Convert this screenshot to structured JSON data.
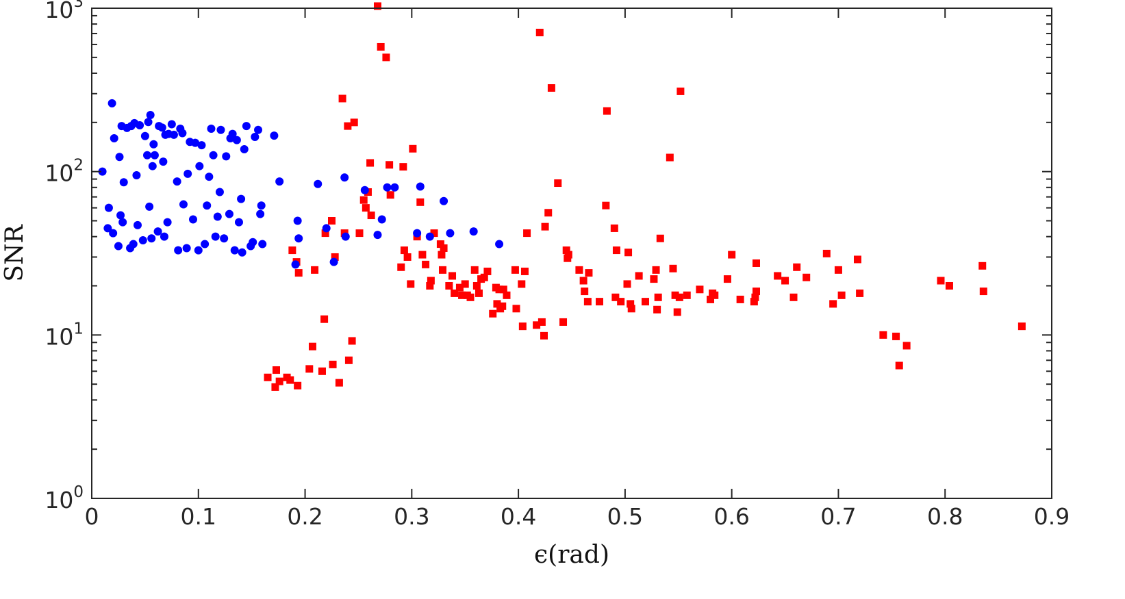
{
  "chart_data": {
    "type": "scatter",
    "xlabel": "ϵ(rad)",
    "ylabel": "SNR",
    "xlim": [
      0,
      0.9
    ],
    "ylim": [
      1,
      1000
    ],
    "yscale": "log",
    "grid": false,
    "x_ticks": [
      "0",
      "0.1",
      "0.2",
      "0.3",
      "0.4",
      "0.5",
      "0.6",
      "0.7",
      "0.8",
      "0.9"
    ],
    "y_ticks": [
      {
        "base": "10",
        "exp": "0",
        "value": 1
      },
      {
        "base": "10",
        "exp": "1",
        "value": 10
      },
      {
        "base": "10",
        "exp": "2",
        "value": 100
      },
      {
        "base": "10",
        "exp": "3",
        "value": 1000
      }
    ],
    "series": [
      {
        "marker": "circle",
        "color": "#0000ff",
        "points": [
          [
            0.01,
            100
          ],
          [
            0.015,
            45
          ],
          [
            0.016,
            60
          ],
          [
            0.019,
            262
          ],
          [
            0.02,
            42
          ],
          [
            0.021,
            160
          ],
          [
            0.025,
            35
          ],
          [
            0.026,
            123
          ],
          [
            0.027,
            54
          ],
          [
            0.028,
            190
          ],
          [
            0.029,
            49
          ],
          [
            0.03,
            86
          ],
          [
            0.033,
            185
          ],
          [
            0.036,
            34
          ],
          [
            0.037,
            190
          ],
          [
            0.039,
            36
          ],
          [
            0.04,
            198
          ],
          [
            0.042,
            95
          ],
          [
            0.043,
            47
          ],
          [
            0.045,
            192
          ],
          [
            0.048,
            38
          ],
          [
            0.05,
            165
          ],
          [
            0.052,
            126
          ],
          [
            0.053,
            201
          ],
          [
            0.054,
            61
          ],
          [
            0.055,
            222
          ],
          [
            0.056,
            39
          ],
          [
            0.057,
            108
          ],
          [
            0.058,
            147
          ],
          [
            0.059,
            126
          ],
          [
            0.062,
            43
          ],
          [
            0.063,
            190
          ],
          [
            0.066,
            186
          ],
          [
            0.067,
            115
          ],
          [
            0.068,
            40
          ],
          [
            0.069,
            168
          ],
          [
            0.071,
            49
          ],
          [
            0.072,
            170
          ],
          [
            0.075,
            195
          ],
          [
            0.077,
            168
          ],
          [
            0.08,
            87
          ],
          [
            0.081,
            33
          ],
          [
            0.083,
            183
          ],
          [
            0.085,
            172
          ],
          [
            0.086,
            63
          ],
          [
            0.089,
            34
          ],
          [
            0.09,
            97
          ],
          [
            0.092,
            152
          ],
          [
            0.095,
            51
          ],
          [
            0.097,
            150
          ],
          [
            0.1,
            33
          ],
          [
            0.101,
            108
          ],
          [
            0.103,
            145
          ],
          [
            0.106,
            36
          ],
          [
            0.108,
            62
          ],
          [
            0.11,
            93
          ],
          [
            0.112,
            183
          ],
          [
            0.114,
            126
          ],
          [
            0.116,
            40
          ],
          [
            0.118,
            53
          ],
          [
            0.12,
            75
          ],
          [
            0.121,
            180
          ],
          [
            0.124,
            39
          ],
          [
            0.126,
            124
          ],
          [
            0.129,
            55
          ],
          [
            0.13,
            160
          ],
          [
            0.132,
            170
          ],
          [
            0.134,
            33
          ],
          [
            0.136,
            156
          ],
          [
            0.138,
            49
          ],
          [
            0.14,
            68
          ],
          [
            0.141,
            32
          ],
          [
            0.143,
            137
          ],
          [
            0.145,
            190
          ],
          [
            0.149,
            35
          ],
          [
            0.151,
            37
          ],
          [
            0.153,
            163
          ],
          [
            0.156,
            180
          ],
          [
            0.158,
            55
          ],
          [
            0.159,
            62
          ],
          [
            0.16,
            36
          ],
          [
            0.171,
            166
          ],
          [
            0.176,
            87
          ],
          [
            0.191,
            27
          ],
          [
            0.193,
            50
          ],
          [
            0.194,
            39
          ],
          [
            0.212,
            84
          ],
          [
            0.22,
            45
          ],
          [
            0.227,
            28
          ],
          [
            0.237,
            92
          ],
          [
            0.238,
            40
          ],
          [
            0.256,
            77
          ],
          [
            0.268,
            41
          ],
          [
            0.272,
            51
          ],
          [
            0.277,
            80
          ],
          [
            0.284,
            80
          ],
          [
            0.305,
            42
          ],
          [
            0.308,
            81
          ],
          [
            0.317,
            40
          ],
          [
            0.33,
            66
          ],
          [
            0.336,
            42
          ],
          [
            0.358,
            43
          ],
          [
            0.382,
            36
          ]
        ]
      },
      {
        "marker": "square",
        "color": "#ff0000",
        "points": [
          [
            0.165,
            5.5
          ],
          [
            0.172,
            4.8
          ],
          [
            0.173,
            6.1
          ],
          [
            0.176,
            5.2
          ],
          [
            0.183,
            5.5
          ],
          [
            0.186,
            5.3
          ],
          [
            0.188,
            33
          ],
          [
            0.192,
            28
          ],
          [
            0.193,
            4.9
          ],
          [
            0.194,
            24
          ],
          [
            0.204,
            6.2
          ],
          [
            0.207,
            8.5
          ],
          [
            0.209,
            25
          ],
          [
            0.216,
            6.0
          ],
          [
            0.218,
            12.5
          ],
          [
            0.219,
            42
          ],
          [
            0.225,
            50
          ],
          [
            0.226,
            6.6
          ],
          [
            0.228,
            30
          ],
          [
            0.232,
            5.1
          ],
          [
            0.235,
            280
          ],
          [
            0.237,
            42
          ],
          [
            0.24,
            190
          ],
          [
            0.241,
            7.0
          ],
          [
            0.244,
            9.2
          ],
          [
            0.246,
            200
          ],
          [
            0.251,
            42
          ],
          [
            0.255,
            67
          ],
          [
            0.257,
            60
          ],
          [
            0.259,
            75
          ],
          [
            0.261,
            113
          ],
          [
            0.262,
            54
          ],
          [
            0.268,
            1030
          ],
          [
            0.271,
            580
          ],
          [
            0.276,
            500
          ],
          [
            0.279,
            110
          ],
          [
            0.28,
            72
          ],
          [
            0.29,
            26
          ],
          [
            0.292,
            107
          ],
          [
            0.293,
            33
          ],
          [
            0.296,
            30
          ],
          [
            0.299,
            20.5
          ],
          [
            0.301,
            138
          ],
          [
            0.305,
            40
          ],
          [
            0.308,
            65
          ],
          [
            0.31,
            31
          ],
          [
            0.313,
            27
          ],
          [
            0.317,
            20
          ],
          [
            0.318,
            21.5
          ],
          [
            0.321,
            42
          ],
          [
            0.327,
            36
          ],
          [
            0.328,
            31
          ],
          [
            0.329,
            25
          ],
          [
            0.33,
            34
          ],
          [
            0.335,
            20
          ],
          [
            0.338,
            23
          ],
          [
            0.34,
            18
          ],
          [
            0.345,
            19.5
          ],
          [
            0.347,
            17.5
          ],
          [
            0.35,
            20.5
          ],
          [
            0.352,
            17.5
          ],
          [
            0.355,
            17
          ],
          [
            0.359,
            25
          ],
          [
            0.361,
            20
          ],
          [
            0.363,
            18
          ],
          [
            0.365,
            22
          ],
          [
            0.368,
            22.5
          ],
          [
            0.371,
            24.5
          ],
          [
            0.376,
            13.5
          ],
          [
            0.379,
            19.5
          ],
          [
            0.38,
            15.5
          ],
          [
            0.382,
            19
          ],
          [
            0.383,
            14.5
          ],
          [
            0.385,
            15
          ],
          [
            0.386,
            19
          ],
          [
            0.389,
            17.5
          ],
          [
            0.397,
            25
          ],
          [
            0.398,
            14.5
          ],
          [
            0.403,
            20.5
          ],
          [
            0.404,
            11.3
          ],
          [
            0.406,
            24.5
          ],
          [
            0.408,
            42
          ],
          [
            0.417,
            11.5
          ],
          [
            0.42,
            710
          ],
          [
            0.422,
            12
          ],
          [
            0.424,
            9.9
          ],
          [
            0.425,
            46
          ],
          [
            0.428,
            56
          ],
          [
            0.431,
            325
          ],
          [
            0.437,
            85
          ],
          [
            0.442,
            12
          ],
          [
            0.445,
            33
          ],
          [
            0.446,
            29.5
          ],
          [
            0.447,
            31
          ],
          [
            0.457,
            25
          ],
          [
            0.461,
            21.5
          ],
          [
            0.462,
            18.5
          ],
          [
            0.465,
            16
          ],
          [
            0.466,
            24
          ],
          [
            0.476,
            16
          ],
          [
            0.482,
            62
          ],
          [
            0.483,
            235
          ],
          [
            0.49,
            45
          ],
          [
            0.491,
            17
          ],
          [
            0.492,
            33
          ],
          [
            0.496,
            16
          ],
          [
            0.502,
            20.5
          ],
          [
            0.503,
            32
          ],
          [
            0.505,
            15.5
          ],
          [
            0.506,
            14.5
          ],
          [
            0.513,
            23
          ],
          [
            0.519,
            16
          ],
          [
            0.527,
            22
          ],
          [
            0.529,
            25
          ],
          [
            0.53,
            14.3
          ],
          [
            0.531,
            17
          ],
          [
            0.533,
            39
          ],
          [
            0.542,
            122
          ],
          [
            0.545,
            25.5
          ],
          [
            0.547,
            17.5
          ],
          [
            0.549,
            13.8
          ],
          [
            0.551,
            17
          ],
          [
            0.552,
            310
          ],
          [
            0.558,
            17.5
          ],
          [
            0.57,
            19
          ],
          [
            0.58,
            16.5
          ],
          [
            0.582,
            18
          ],
          [
            0.584,
            17.5
          ],
          [
            0.596,
            22
          ],
          [
            0.6,
            31
          ],
          [
            0.608,
            16.5
          ],
          [
            0.621,
            16
          ],
          [
            0.622,
            17
          ],
          [
            0.623,
            18.5
          ],
          [
            0.623,
            27.5
          ],
          [
            0.643,
            23
          ],
          [
            0.65,
            21.5
          ],
          [
            0.658,
            17
          ],
          [
            0.661,
            26
          ],
          [
            0.67,
            22.5
          ],
          [
            0.689,
            31.5
          ],
          [
            0.695,
            15.5
          ],
          [
            0.7,
            25
          ],
          [
            0.703,
            17.5
          ],
          [
            0.718,
            29
          ],
          [
            0.72,
            18
          ],
          [
            0.742,
            10
          ],
          [
            0.754,
            9.8
          ],
          [
            0.757,
            6.5
          ],
          [
            0.764,
            8.6
          ],
          [
            0.796,
            21.5
          ],
          [
            0.804,
            20
          ],
          [
            0.835,
            26.5
          ],
          [
            0.836,
            18.5
          ],
          [
            0.872,
            11.3
          ]
        ]
      }
    ]
  }
}
